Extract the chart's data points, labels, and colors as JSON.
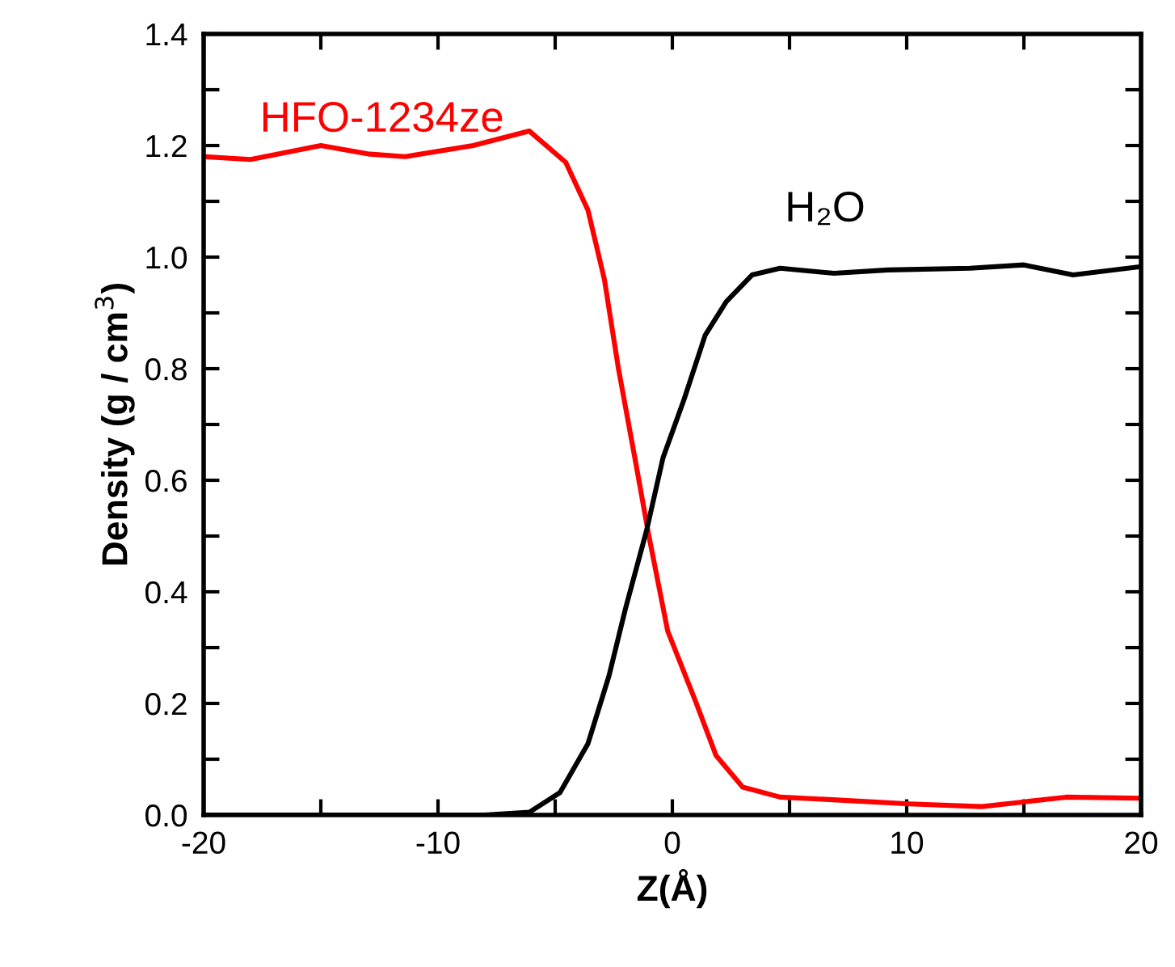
{
  "chart_data": {
    "type": "line",
    "xlabel": "Z(Å)",
    "ylabel": "Density (g / cm$^{3}$)",
    "xlim": [
      -20,
      20
    ],
    "ylim": [
      0,
      1.4
    ],
    "xticks": [
      -20,
      {
        "value": -15,
        "label": null
      },
      -10,
      {
        "value": -5,
        "label": null
      },
      0,
      {
        "value": 5,
        "label": null
      },
      10,
      {
        "value": 15,
        "label": null
      },
      20
    ],
    "yticks": [
      {
        "value": 0,
        "label": "0.0"
      },
      {
        "value": 0.1,
        "label": null
      },
      {
        "value": 0.2,
        "label": "0.2"
      },
      {
        "value": 0.3,
        "label": null
      },
      {
        "value": 0.4,
        "label": "0.4"
      },
      {
        "value": 0.5,
        "label": null
      },
      {
        "value": 0.6,
        "label": "0.6"
      },
      {
        "value": 0.7,
        "label": null
      },
      {
        "value": 0.8,
        "label": "0.8"
      },
      {
        "value": 0.9,
        "label": null
      },
      {
        "value": 1.0,
        "label": "1.0"
      },
      {
        "value": 1.1,
        "label": null
      },
      {
        "value": 1.2,
        "label": "1.2"
      },
      {
        "value": 1.3,
        "label": null
      },
      {
        "value": 1.4,
        "label": "1.4"
      }
    ],
    "grid": false,
    "legend": false,
    "marker": "none",
    "line_style": "solid",
    "series": [
      {
        "name": "HFO-1234ze",
        "color": "#ff0000",
        "x": [
          -20,
          -18,
          -15,
          -13,
          -11.4,
          -8.5,
          -6.1,
          -4.55,
          -3.6,
          -2.9,
          -2.3,
          -1.6,
          -1.0,
          -0.2,
          0.97,
          1.86,
          3.0,
          4.6,
          7.0,
          10.1,
          13.2,
          16.8,
          20
        ],
        "values": [
          1.18,
          1.175,
          1.2,
          1.185,
          1.18,
          1.2,
          1.226,
          1.17,
          1.084,
          0.96,
          0.8,
          0.64,
          0.5,
          0.33,
          0.206,
          0.107,
          0.05,
          0.032,
          0.027,
          0.02,
          0.015,
          0.032,
          0.03
        ]
      },
      {
        "name": "H₂O",
        "color": "#000000",
        "x": [
          -20,
          -8,
          -6.1,
          -4.8,
          -3.6,
          -2.7,
          -2.0,
          -1.1,
          -0.4,
          0.5,
          1.4,
          2.3,
          3.4,
          4.6,
          6.9,
          9.2,
          12.7,
          15.0,
          17.1,
          20
        ],
        "values": [
          0,
          0,
          0.005,
          0.04,
          0.128,
          0.25,
          0.37,
          0.51,
          0.64,
          0.745,
          0.86,
          0.92,
          0.968,
          0.98,
          0.971,
          0.977,
          0.98,
          0.986,
          0.968,
          0.983
        ]
      }
    ]
  }
}
